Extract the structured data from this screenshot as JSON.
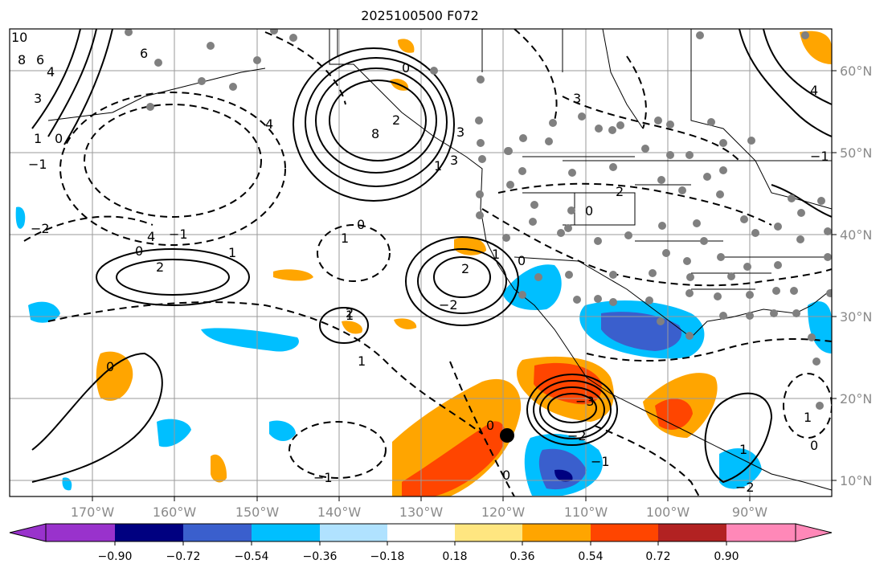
{
  "title": "2025100500 F072",
  "longitude_labels": [
    "170°W",
    "160°W",
    "150°W",
    "140°W",
    "130°W",
    "120°W",
    "110°W",
    "100°W",
    "90°W"
  ],
  "latitude_labels": [
    "60°N",
    "50°N",
    "40°N",
    "30°N",
    "20°N",
    "10°N"
  ],
  "colorbar": {
    "tick_labels": [
      "−0.90",
      "−0.72",
      "−0.54",
      "−0.36",
      "−0.18",
      "0.18",
      "0.36",
      "0.54",
      "0.72",
      "0.90"
    ],
    "colors": [
      "#9932cc",
      "#000080",
      "#3a5fcd",
      "#00bfff",
      "#b0e2ff",
      "#ffffff",
      "#ffe680",
      "#ffa500",
      "#ff4500",
      "#b22222",
      "#ff88b8"
    ]
  },
  "contour_labels": [
    "10",
    "8",
    "6",
    "4",
    "3",
    "1",
    "0",
    "−1",
    "6",
    "4",
    "8",
    "2",
    "1",
    "0",
    "3",
    "4",
    "3",
    "2",
    "−2",
    "0",
    "−1",
    "1",
    "2",
    "0",
    "2",
    "1",
    "0",
    "1",
    "3",
    "−2",
    "1",
    "−2",
    "−3",
    "4",
    "1",
    "0",
    "−1",
    "2",
    "1",
    "0",
    "1",
    "−1",
    "0",
    "−2",
    "−1",
    "0",
    "0"
  ],
  "colors": {
    "text": "#000000",
    "axis_label": "#8a8a8a",
    "station": "#808080",
    "coast": "#000000"
  }
}
